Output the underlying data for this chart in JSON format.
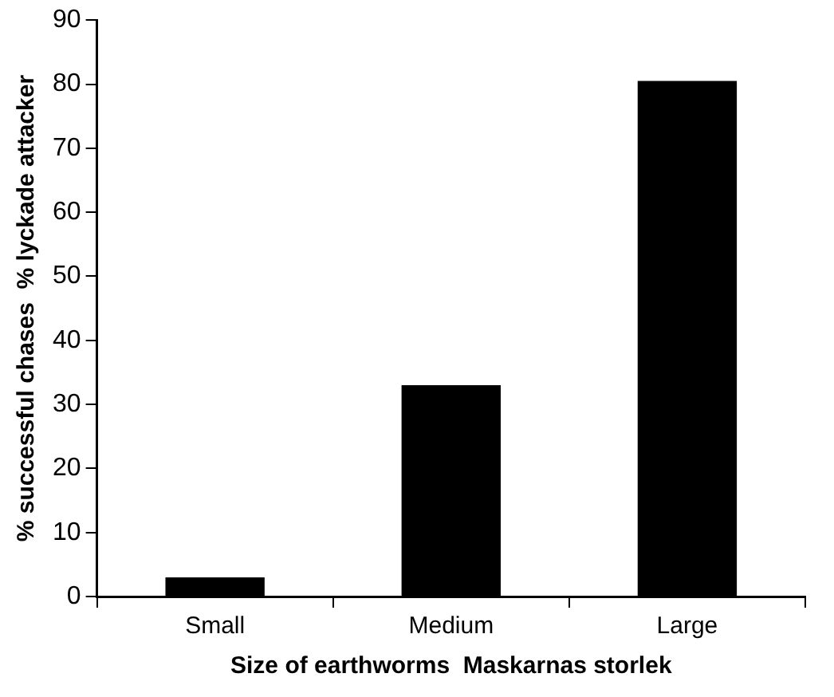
{
  "chart_data": {
    "type": "bar",
    "xlabel": "Size of earthworms  Maskarnas storlek",
    "ylabel": "% successful chases  % lyckade attacker",
    "categories": [
      "Small",
      "Medium",
      "Large"
    ],
    "values": [
      3,
      33,
      80.5
    ],
    "color": "#000000",
    "ylim": [
      0,
      90
    ],
    "yticks": [
      0,
      10,
      20,
      30,
      40,
      50,
      60,
      70,
      80,
      90
    ],
    "grid": false,
    "legend": false
  }
}
